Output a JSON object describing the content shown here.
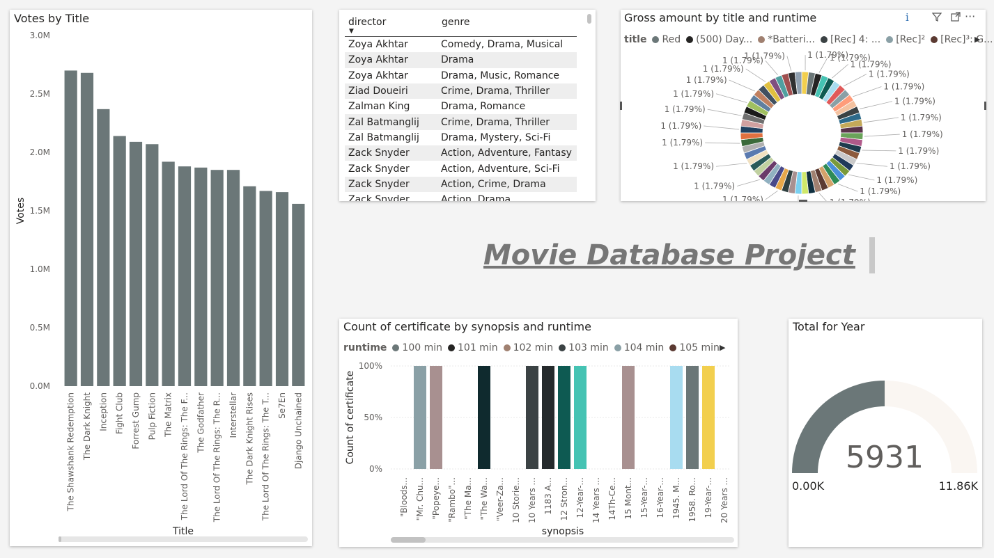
{
  "page_title": "Movie Database Project",
  "colors": {
    "bar": "#6b7778",
    "accent_gray": "#6b7778",
    "gauge_track": "#faf6f2"
  },
  "votes_chart": {
    "title": "Votes by Title",
    "xlabel": "Title",
    "ylabel": "Votes",
    "y_ticks": [
      "3.0M",
      "2.5M",
      "2.0M",
      "1.5M",
      "1.0M",
      "0.5M",
      "0.0M"
    ]
  },
  "table": {
    "headers": [
      "director",
      "genre"
    ],
    "rows": [
      [
        "Zoya Akhtar",
        "Comedy, Drama, Musical"
      ],
      [
        "Zoya Akhtar",
        "Drama"
      ],
      [
        "Zoya Akhtar",
        "Drama, Music, Romance"
      ],
      [
        "Ziad Doueiri",
        "Crime, Drama, Thriller"
      ],
      [
        "Zalman King",
        "Drama, Romance"
      ],
      [
        "Zal Batmanglij",
        "Crime, Drama, Thriller"
      ],
      [
        "Zal Batmanglij",
        "Drama, Mystery, Sci-Fi"
      ],
      [
        "Zack Snyder",
        "Action, Adventure, Fantasy"
      ],
      [
        "Zack Snyder",
        "Action, Adventure, Sci-Fi"
      ],
      [
        "Zack Snyder",
        "Action, Crime, Drama"
      ],
      [
        "Zack Snyder",
        "Action, Drama"
      ]
    ]
  },
  "donut": {
    "title": "Gross amount by title and runtime",
    "legend_title": "title",
    "legend": [
      {
        "label": "Red",
        "color": "#6b7778"
      },
      {
        "label": "(500) Day...",
        "color": "#252423"
      },
      {
        "label": "*Batteri...",
        "color": "#a08070"
      },
      {
        "label": "[Rec] 4: ...",
        "color": "#3b4244"
      },
      {
        "label": "[Rec]²",
        "color": "#8aa0a6"
      },
      {
        "label": "[Rec]³: G...",
        "color": "#5b3a32"
      }
    ],
    "label_text": "1 (1.79%)"
  },
  "cert_chart": {
    "title": "Count of certificate by synopsis and runtime",
    "legend_title": "runtime",
    "legend": [
      {
        "label": "100 min",
        "color": "#6b7778"
      },
      {
        "label": "101 min",
        "color": "#252423"
      },
      {
        "label": "102 min",
        "color": "#a08070"
      },
      {
        "label": "103 min",
        "color": "#3b4244"
      },
      {
        "label": "104 min",
        "color": "#8aa0a6"
      },
      {
        "label": "105 min",
        "color": "#5b3a32"
      }
    ],
    "xlabel": "synopsis",
    "ylabel": "Count of certificate",
    "y_ticks": [
      "100%",
      "50%",
      "0%"
    ]
  },
  "gauge": {
    "title": "Total for Year",
    "value_label": "5931",
    "min_label": "0.00K",
    "max_label": "11.86K"
  },
  "chart_data": [
    {
      "type": "bar",
      "title": "Votes by Title",
      "xlabel": "Title",
      "ylabel": "Votes",
      "ylim": [
        0,
        3000000
      ],
      "categories": [
        "The Shawshank Redemption",
        "The Dark Knight",
        "Inception",
        "Fight Club",
        "Forrest Gump",
        "Pulp Fiction",
        "The Matrix",
        "The Lord Of The Rings: The F...",
        "The Godfather",
        "The Lord Of The Rings: The R...",
        "Interstellar",
        "The Dark Knight Rises",
        "The Lord Of The Rings: The T...",
        "Se7En",
        "Django Unchained"
      ],
      "values": [
        2700000,
        2680000,
        2370000,
        2140000,
        2090000,
        2070000,
        1920000,
        1880000,
        1870000,
        1850000,
        1850000,
        1710000,
        1670000,
        1660000,
        1560000
      ]
    },
    {
      "type": "pie",
      "title": "Gross amount by title and runtime",
      "slice_count": 56,
      "slice_value": 1,
      "slice_percent": 1.79,
      "slice_label": "1 (1.79%)"
    },
    {
      "type": "bar",
      "title": "Count of certificate by synopsis and runtime",
      "xlabel": "synopsis",
      "ylabel": "Count of certificate",
      "ylim": [
        0,
        100
      ],
      "categories": [
        "\"Bloods...",
        "\"Mr. Chu...",
        "\"Popeye...",
        "\"Rambo\"...",
        "\"The Ma...",
        "\"The Wa...",
        "\"Veer-Za...",
        "10 Storie...",
        "10 Years ...",
        "1183 A...",
        "12 Stron...",
        "12-Year-...",
        "14 Years ...",
        "14Th-Ce...",
        "15 Mont...",
        "15-Year-...",
        "16-Year-...",
        "1945. M...",
        "1958. Ro...",
        "19-Year-...",
        "20 Years ..."
      ],
      "values": [
        0,
        100,
        100,
        0,
        0,
        100,
        0,
        0,
        100,
        100,
        100,
        100,
        0,
        0,
        100,
        0,
        0,
        100,
        100,
        100,
        0
      ],
      "bar_colors": [
        "",
        "#8aa0a6",
        "#a89090",
        "",
        "",
        "#0f2a2e",
        "",
        "",
        "#3b4244",
        "#252a2c",
        "#0e5a52",
        "#45c3b3",
        "",
        "",
        "#a89090",
        "",
        "",
        "#a8dcf0",
        "#6b7778",
        "#f2cf4e",
        ""
      ]
    },
    {
      "type": "gauge",
      "title": "Total for Year",
      "value": 5931,
      "min": 0,
      "max": 11860
    }
  ]
}
